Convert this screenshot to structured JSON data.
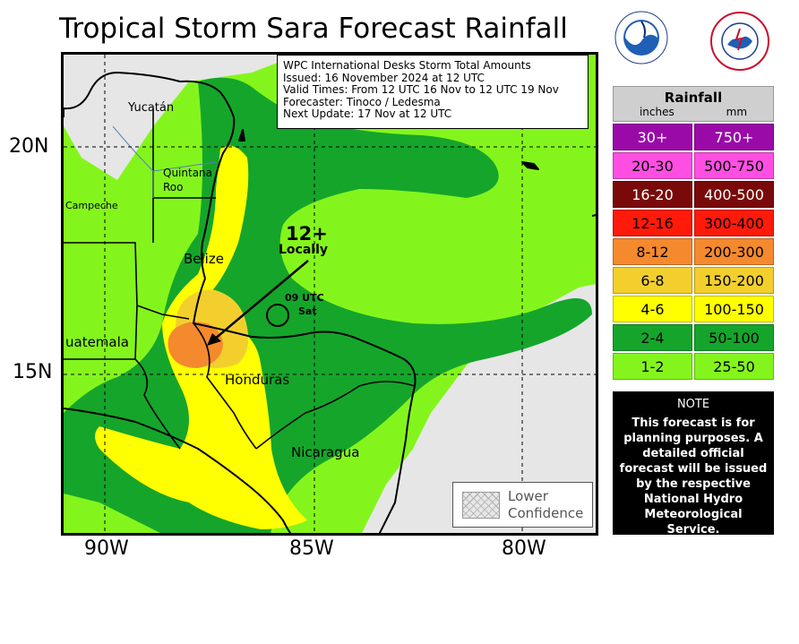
{
  "title": "Tropical Storm Sara Forecast Rainfall",
  "info": [
    "WPC International Desks Storm Total Amounts",
    "Issued:  16 November 2024 at 12 UTC",
    "Valid Times:  From 12 UTC 16 Nov  to  12 UTC 19 Nov",
    "Forecaster:  Tinoco / Ledesma",
    "Next Update: 17 Nov at 12 UTC"
  ],
  "axes": {
    "lat_labels": [
      "20N",
      "15N"
    ],
    "lon_labels": [
      "90W",
      "85W",
      "80W"
    ]
  },
  "place_labels": {
    "yucatan": "Yucatán",
    "quintana_roo_1": "Quintana",
    "quintana_roo_2": "Roo",
    "campeche": "Campeche",
    "belize": "Belize",
    "guatemala": "uatemala",
    "honduras": "Honduras",
    "nicaragua": "Nicaragua"
  },
  "annotations": {
    "max_value": "12+",
    "max_note": "Locally",
    "storm_time_1": "09 UTC",
    "storm_time_2": "Sat"
  },
  "lower_confidence": {
    "line1": "Lower",
    "line2": "Confidence"
  },
  "legend": {
    "title": "Rainfall",
    "unit_in": "inches",
    "unit_mm": "mm",
    "rows": [
      {
        "in": "30+",
        "mm": "750+",
        "color": "#9a0aa8",
        "text_color": "#ffffff"
      },
      {
        "in": "20-30",
        "mm": "500-750",
        "color": "#ff4fe2",
        "text_color": "#000000"
      },
      {
        "in": "16-20",
        "mm": "400-500",
        "color": "#7a0a0a",
        "text_color": "#ffffff"
      },
      {
        "in": "12-16",
        "mm": "300-400",
        "color": "#ff1a0a",
        "text_color": "#000000"
      },
      {
        "in": "8-12",
        "mm": "200-300",
        "color": "#f5892d",
        "text_color": "#000000"
      },
      {
        "in": "6-8",
        "mm": "150-200",
        "color": "#f3cf2e",
        "text_color": "#000000"
      },
      {
        "in": "4-6",
        "mm": "100-150",
        "color": "#ffff00",
        "text_color": "#000000"
      },
      {
        "in": "2-4",
        "mm": "50-100",
        "color": "#15a52b",
        "text_color": "#000000"
      },
      {
        "in": "1-2",
        "mm": "25-50",
        "color": "#84f51c",
        "text_color": "#000000"
      }
    ]
  },
  "note": {
    "heading": "NOTE",
    "body": "This forecast is for planning purposes. A detailed official forecast will be issued by the respective National Hydro Meteorological Service."
  },
  "colors": {
    "ocean": "#e6e6e6",
    "rain_1_2": "#84f51c",
    "rain_2_4": "#15a52b",
    "rain_4_6": "#ffff00",
    "rain_6_8": "#f3cf2e",
    "rain_8_12": "#f5892d"
  }
}
